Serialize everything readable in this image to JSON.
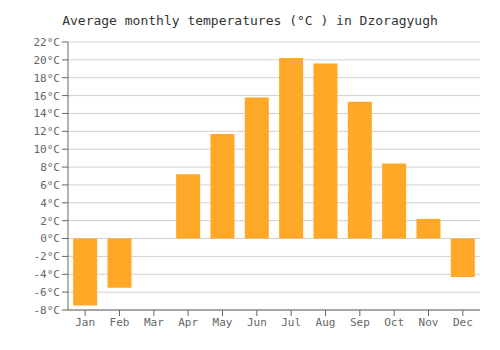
{
  "chart_data": {
    "type": "bar",
    "title": "Average monthly temperatures (°C ) in Dzoragyugh",
    "categories": [
      "Jan",
      "Feb",
      "Mar",
      "Apr",
      "May",
      "Jun",
      "Jul",
      "Aug",
      "Sep",
      "Oct",
      "Nov",
      "Dec"
    ],
    "values": [
      -7.5,
      -5.5,
      0,
      7.2,
      11.7,
      15.8,
      20.2,
      19.6,
      15.3,
      8.4,
      2.2,
      -4.3
    ],
    "color": "#FFA726",
    "ylim": [
      -8,
      22
    ],
    "yticks": [
      {
        "value": -8,
        "label": "-8°C"
      },
      {
        "value": -6,
        "label": "-6°C"
      },
      {
        "value": -4,
        "label": "-4°C"
      },
      {
        "value": -2,
        "label": "-2°C"
      },
      {
        "value": 0,
        "label": "0°C"
      },
      {
        "value": 2,
        "label": "2°C"
      },
      {
        "value": 4,
        "label": "4°C"
      },
      {
        "value": 6,
        "label": "6°C"
      },
      {
        "value": 8,
        "label": "8°C"
      },
      {
        "value": 10,
        "label": "10°C"
      },
      {
        "value": 12,
        "label": "12°C"
      },
      {
        "value": 14,
        "label": "14°C"
      },
      {
        "value": 16,
        "label": "16°C"
      },
      {
        "value": 18,
        "label": "18°C"
      },
      {
        "value": 20,
        "label": "20°C"
      },
      {
        "value": 22,
        "label": "22°C"
      }
    ],
    "grid": true
  }
}
